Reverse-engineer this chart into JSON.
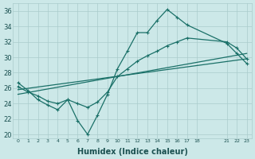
{
  "background_color": "#cce8e8",
  "grid_color": "#aacccc",
  "line_color": "#1a7068",
  "line1_x": [
    0,
    1,
    2,
    3,
    4,
    5,
    6,
    7,
    8,
    9,
    10,
    11,
    12,
    13,
    14,
    15,
    16,
    17,
    21,
    22,
    23
  ],
  "line1_y": [
    26.7,
    25.7,
    24.5,
    23.8,
    23.2,
    24.5,
    21.8,
    20.0,
    22.5,
    25.2,
    28.5,
    30.8,
    33.2,
    33.2,
    34.8,
    36.2,
    35.2,
    34.2,
    31.8,
    30.5,
    29.2
  ],
  "line2_x": [
    0,
    1,
    2,
    3,
    4,
    5,
    6,
    7,
    8,
    9,
    10,
    11,
    12,
    13,
    14,
    15,
    16,
    17,
    21,
    22,
    23
  ],
  "line2_y": [
    26.2,
    25.5,
    25.0,
    24.3,
    24.0,
    24.5,
    24.0,
    23.5,
    24.2,
    25.5,
    27.5,
    28.5,
    29.5,
    30.2,
    30.8,
    31.5,
    32.0,
    32.5,
    32.0,
    31.2,
    29.8
  ],
  "line3_x": [
    0,
    23
  ],
  "line3_y": [
    25.8,
    29.8
  ],
  "line4_x": [
    0,
    23
  ],
  "line4_y": [
    25.2,
    30.5
  ],
  "xlabel": "Humidex (Indice chaleur)",
  "ylim": [
    19.5,
    37.0
  ],
  "yticks": [
    20,
    22,
    24,
    26,
    28,
    30,
    32,
    34,
    36
  ],
  "xticks": [
    0,
    1,
    2,
    3,
    4,
    5,
    6,
    7,
    8,
    9,
    10,
    11,
    12,
    13,
    14,
    15,
    16,
    17,
    18,
    21,
    22,
    23
  ]
}
